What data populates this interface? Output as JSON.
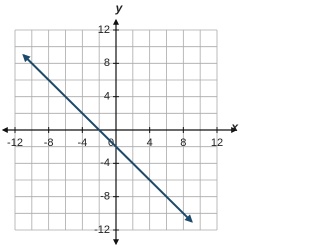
{
  "chart_data": {
    "type": "line",
    "x_label": "x",
    "y_label": "y",
    "xlim": [
      -12,
      12
    ],
    "ylim": [
      -12,
      12
    ],
    "xticks": [
      -12,
      -8,
      -4,
      0,
      4,
      8,
      12
    ],
    "yticks": [
      -12,
      -8,
      -4,
      0,
      4,
      8,
      12
    ],
    "grid": true,
    "series": [
      {
        "color": "#1d4a6b",
        "x": [
          -11,
          9
        ],
        "values": [
          9,
          -11
        ]
      }
    ]
  }
}
